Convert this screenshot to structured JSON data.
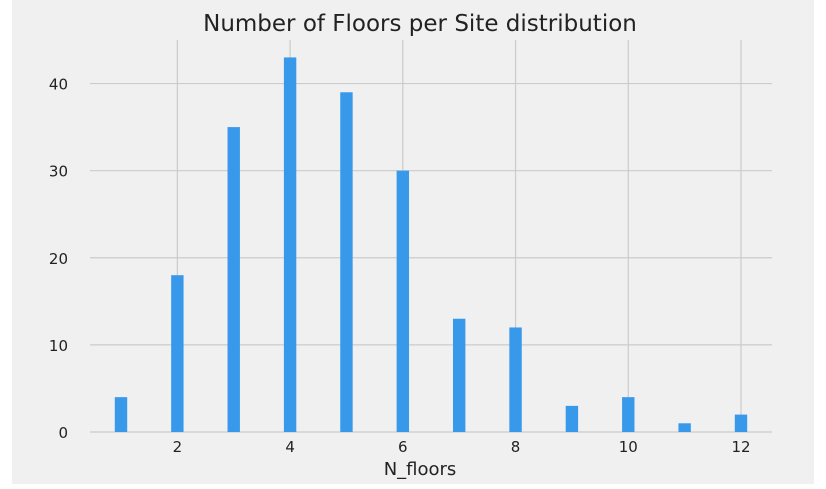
{
  "chart_data": {
    "type": "bar",
    "title": "Number of Floors per Site distribution",
    "xlabel": "N_floors",
    "ylabel": "",
    "categories": [
      1,
      2,
      3,
      4,
      5,
      6,
      7,
      8,
      9,
      10,
      11,
      12
    ],
    "values": [
      4,
      18,
      35,
      43,
      39,
      30,
      13,
      12,
      3,
      4,
      1,
      2
    ],
    "xlim": [
      0.45,
      12.55
    ],
    "ylim": [
      0,
      45
    ],
    "x_ticks": [
      2,
      4,
      6,
      8,
      10,
      12
    ],
    "y_ticks": [
      0,
      10,
      20,
      30,
      40
    ],
    "grid": true,
    "bar_color": "#3899ea",
    "background_color": "#f0f0f0",
    "grid_color": "#cbcbcb",
    "text_color": "#222222"
  }
}
